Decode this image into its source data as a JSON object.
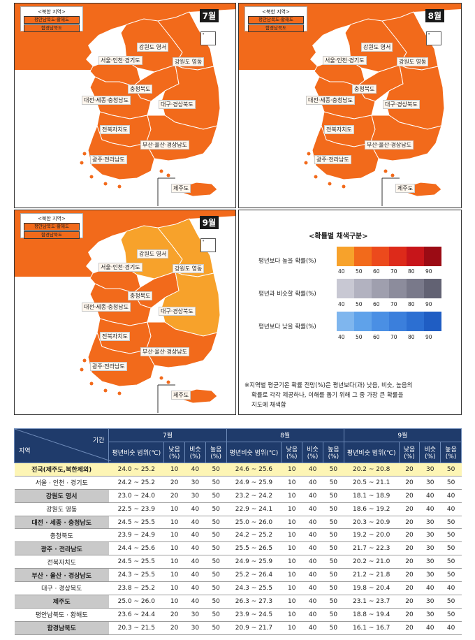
{
  "maps": [
    {
      "month": "7월",
      "nk_title": "<북한 지역>",
      "nk_chip_1": "평안남북도·황해도",
      "nk_chip_2": "함경남북도",
      "dots": "ᵍ",
      "regions": {
        "gangwon_west": "강원도 영서",
        "gangwon_east": "강원도 영동",
        "seoul": "서울·인천·경기도",
        "chungbuk": "충청북도",
        "chungnam": "대전·세종·충청남도",
        "daegu": "대구·경상북도",
        "jeonbuk": "전북자치도",
        "busan": "부산·울산·경상남도",
        "gwangju": "광주·전라남도",
        "jeju": "제주도"
      }
    },
    {
      "month": "8월",
      "nk_title": "<북한 지역>",
      "nk_chip_1": "평안남북도·황해도",
      "nk_chip_2": "함경남북도",
      "dots": "ᵍ",
      "regions": {
        "gangwon_west": "강원도 영서",
        "gangwon_east": "강원도 영동",
        "seoul": "서울·인천·경기도",
        "chungbuk": "충청북도",
        "chungnam": "대전·세종·충청남도",
        "daegu": "대구·경상북도",
        "jeonbuk": "전북자치도",
        "busan": "부산·울산·경상남도",
        "gwangju": "광주·전라남도",
        "jeju": "제주도"
      }
    },
    {
      "month": "9월",
      "nk_title": "<북한 지역>",
      "nk_chip_1": "평안남북도·황해도",
      "nk_chip_2": "함경남북도",
      "dots": "ᵍ",
      "regions": {
        "gangwon_west": "강원도 영서",
        "gangwon_east": "강원도 영동",
        "seoul": "서울·인천·경기도",
        "chungbuk": "충청북도",
        "chungnam": "대전·세종·충청남도",
        "daegu": "대구·경상북도",
        "jeonbuk": "전북자치도",
        "busan": "부산·울산·경상남도",
        "gwangju": "광주·전라남도",
        "jeju": "제주도"
      }
    }
  ],
  "colors": {
    "above_50": "#f26a1b",
    "above_40": "#f7a22b",
    "above_scale": [
      "#f7a22b",
      "#f26a1b",
      "#ec4a1c",
      "#dd2a1a",
      "#c7151a",
      "#9b0b14"
    ],
    "similar_scale": [
      "#c8c8d3",
      "#b2b2c0",
      "#9f9fae",
      "#8c8c9c",
      "#79798a",
      "#626273"
    ],
    "below_scale": [
      "#7fb6ee",
      "#5fa2ea",
      "#4a8fe4",
      "#3b7fdc",
      "#2c6fd2",
      "#1f5dc3"
    ]
  },
  "legend": {
    "title": "<확률별 채색구분>",
    "above_label": "평년보다 높을 확률(%)",
    "similar_label": "평년과 비슷할 확률(%)",
    "below_label": "평년보다 낮을 확률(%)",
    "ticks": [
      "40",
      "50",
      "60",
      "70",
      "80",
      "90"
    ],
    "note_line1": "※지역별 평균기온 확률 전망(%)은 평년보다(과) 낮음, 비슷, 높음의",
    "note_line2": "확률로 각각 제공하나, 이해를 돕기 위해 그 중 가장 큰 확률을",
    "note_line3": "지도에 채색함"
  },
  "chart_data": {
    "type": "table",
    "corner_region": "지역",
    "corner_period": "기간",
    "months": [
      "7월",
      "8월",
      "9월"
    ],
    "sub_headers": {
      "range": "평년비슷 범위(℃)",
      "low": "낮음 (%)",
      "similar": "비슷 (%)",
      "high": "높음 (%)"
    },
    "rows": [
      {
        "region": "전국(제주도,북한제외)",
        "jul": [
          "24.0 ~ 25.2",
          "10",
          "40",
          "50"
        ],
        "aug": [
          "24.6 ~ 25.6",
          "10",
          "40",
          "50"
        ],
        "sep": [
          "20.2 ~ 20.8",
          "20",
          "30",
          "50"
        ]
      },
      {
        "region": "서울 · 인천 · 경기도",
        "jul": [
          "24.2 ~ 25.2",
          "20",
          "30",
          "50"
        ],
        "aug": [
          "24.9 ~ 25.9",
          "10",
          "40",
          "50"
        ],
        "sep": [
          "20.5 ~ 21.1",
          "20",
          "30",
          "50"
        ]
      },
      {
        "region": "강원도 영서",
        "jul": [
          "23.0 ~ 24.0",
          "20",
          "30",
          "50"
        ],
        "aug": [
          "23.2 ~ 24.2",
          "10",
          "40",
          "50"
        ],
        "sep": [
          "18.1 ~ 18.9",
          "20",
          "40",
          "40"
        ]
      },
      {
        "region": "강원도 영동",
        "jul": [
          "22.5 ~ 23.9",
          "10",
          "40",
          "50"
        ],
        "aug": [
          "22.9 ~ 24.1",
          "10",
          "40",
          "50"
        ],
        "sep": [
          "18.6 ~ 19.2",
          "20",
          "40",
          "40"
        ]
      },
      {
        "region": "대전 · 세종 · 충청남도",
        "jul": [
          "24.5 ~ 25.5",
          "10",
          "40",
          "50"
        ],
        "aug": [
          "25.0 ~ 26.0",
          "10",
          "40",
          "50"
        ],
        "sep": [
          "20.3 ~ 20.9",
          "20",
          "30",
          "50"
        ]
      },
      {
        "region": "충청북도",
        "jul": [
          "23.9 ~ 24.9",
          "10",
          "40",
          "50"
        ],
        "aug": [
          "24.2 ~ 25.2",
          "10",
          "40",
          "50"
        ],
        "sep": [
          "19.2 ~ 20.0",
          "20",
          "30",
          "50"
        ]
      },
      {
        "region": "광주 · 전라남도",
        "jul": [
          "24.4 ~ 25.6",
          "10",
          "40",
          "50"
        ],
        "aug": [
          "25.5 ~ 26.5",
          "10",
          "40",
          "50"
        ],
        "sep": [
          "21.7 ~ 22.3",
          "20",
          "30",
          "50"
        ]
      },
      {
        "region": "전북자치도",
        "jul": [
          "24.5 ~ 25.5",
          "10",
          "40",
          "50"
        ],
        "aug": [
          "24.9 ~ 25.9",
          "10",
          "40",
          "50"
        ],
        "sep": [
          "20.2 ~ 21.0",
          "20",
          "30",
          "50"
        ]
      },
      {
        "region": "부산 · 울산 · 경상남도",
        "jul": [
          "24.3 ~ 25.5",
          "10",
          "40",
          "50"
        ],
        "aug": [
          "25.2 ~ 26.4",
          "10",
          "40",
          "50"
        ],
        "sep": [
          "21.2 ~ 21.8",
          "20",
          "30",
          "50"
        ]
      },
      {
        "region": "대구 · 경상북도",
        "jul": [
          "23.8 ~ 25.2",
          "10",
          "40",
          "50"
        ],
        "aug": [
          "24.3 ~ 25.5",
          "10",
          "40",
          "50"
        ],
        "sep": [
          "19.8 ~ 20.4",
          "20",
          "40",
          "40"
        ]
      },
      {
        "region": "제주도",
        "jul": [
          "25.0 ~ 26.0",
          "10",
          "40",
          "50"
        ],
        "aug": [
          "26.3 ~ 27.3",
          "10",
          "40",
          "50"
        ],
        "sep": [
          "23.1 ~ 23.7",
          "20",
          "30",
          "50"
        ]
      },
      {
        "region": "평안남북도 · 황해도",
        "jul": [
          "23.6 ~ 24.4",
          "20",
          "30",
          "50"
        ],
        "aug": [
          "23.9 ~ 24.5",
          "10",
          "40",
          "50"
        ],
        "sep": [
          "18.8 ~ 19.4",
          "20",
          "30",
          "50"
        ]
      },
      {
        "region": "함경남북도",
        "jul": [
          "20.3 ~ 21.5",
          "20",
          "30",
          "50"
        ],
        "aug": [
          "20.9 ~ 21.7",
          "10",
          "40",
          "50"
        ],
        "sep": [
          "16.1 ~ 16.7",
          "20",
          "40",
          "40"
        ]
      }
    ]
  }
}
